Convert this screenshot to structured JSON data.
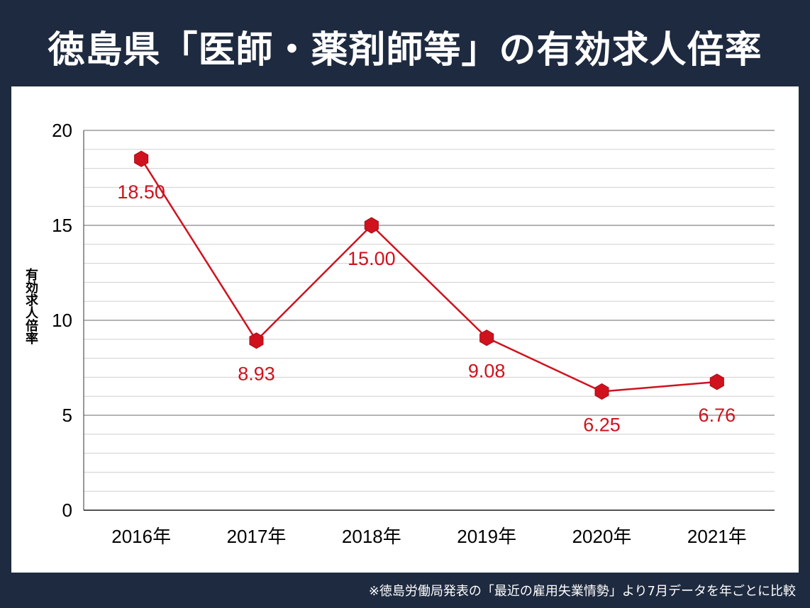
{
  "title": "徳島県「医師・薬剤師等」の有効求人倍率",
  "footnote": "※徳島労働局発表の「最近の雇用失業情勢」より7月データを年ごとに比較",
  "colors": {
    "background": "#1e2a3f",
    "panel": "#ffffff",
    "series": "#d0121e",
    "grid_major": "#888888",
    "grid_minor": "#d0d0d0"
  },
  "chart_data": {
    "type": "line",
    "title": "徳島県「医師・薬剤師等」の有効求人倍率",
    "xlabel": "",
    "ylabel": "有効求人倍率",
    "categories": [
      "2016年",
      "2017年",
      "2018年",
      "2019年",
      "2020年",
      "2021年"
    ],
    "values": [
      18.5,
      8.93,
      15.0,
      9.08,
      6.25,
      6.76
    ],
    "data_labels": [
      "18.50",
      "8.93",
      "15.00",
      "9.08",
      "6.25",
      "6.76"
    ],
    "ylim": [
      0,
      20
    ],
    "yticks": [
      0,
      5,
      10,
      15,
      20
    ],
    "grid": true,
    "legend": "none",
    "marker": "hexagon"
  }
}
